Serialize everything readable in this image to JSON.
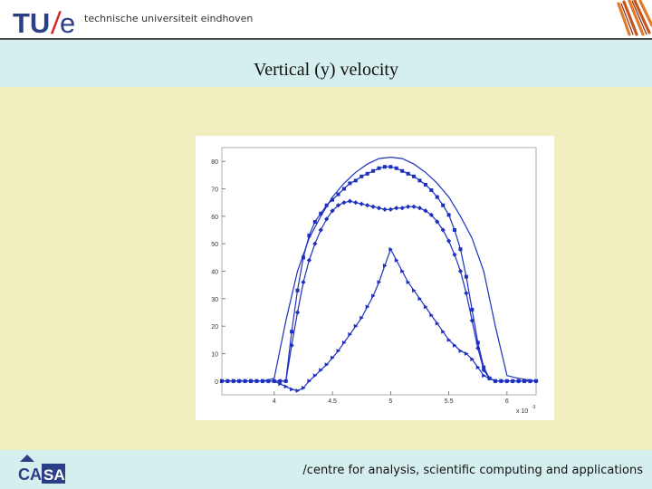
{
  "header": {
    "logo_tu": "TU",
    "logo_slash": "/",
    "logo_e": "e",
    "tagline": "technische universiteit eindhoven"
  },
  "slide": {
    "title": "Vertical (y) velocity"
  },
  "footer": {
    "text": "/centre for analysis, scientific computing and applications",
    "logo_left": "CA",
    "logo_right": "SA"
  },
  "colors": {
    "background": "#f1eebf",
    "band": "#d5eeee",
    "brand_blue": "#2a3f85",
    "brand_red": "#d8272c",
    "series": "#1c2fbe"
  },
  "chart_data": {
    "type": "line",
    "xlim": [
      3.55,
      6.25
    ],
    "ylim": [
      -5,
      85
    ],
    "x_ticks": [
      4,
      4.5,
      5,
      5.5,
      6
    ],
    "x_tick_labels": [
      "4",
      "4.5",
      "5",
      "5.5",
      "6"
    ],
    "y_ticks": [
      0,
      10,
      20,
      30,
      40,
      50,
      60,
      70,
      80
    ],
    "y_tick_labels": [
      "0",
      "10",
      "20",
      "30",
      "40",
      "50",
      "60",
      "70",
      "80"
    ],
    "x_multiplier": "x 10",
    "x_multiplier_exp": "-3",
    "series": [
      {
        "marker": "none",
        "x": [
          3.55,
          3.9,
          4.0,
          4.1,
          4.2,
          4.3,
          4.4,
          4.5,
          4.6,
          4.7,
          4.8,
          4.9,
          5.0,
          5.1,
          5.2,
          5.3,
          5.4,
          5.5,
          5.6,
          5.7,
          5.8,
          5.9,
          6.0,
          6.1,
          6.25
        ],
        "y": [
          0,
          0,
          1,
          22,
          40,
          52,
          60,
          67,
          72,
          76,
          79,
          81,
          81.5,
          81,
          79,
          76,
          72,
          67,
          60,
          52,
          40,
          20,
          2,
          1,
          0
        ]
      },
      {
        "marker": "square",
        "x": [
          3.55,
          3.6,
          3.65,
          3.7,
          3.75,
          3.8,
          3.85,
          3.9,
          3.95,
          4.0,
          4.05,
          4.1,
          4.15,
          4.2,
          4.25,
          4.3,
          4.35,
          4.4,
          4.45,
          4.5,
          4.55,
          4.6,
          4.65,
          4.7,
          4.75,
          4.8,
          4.85,
          4.9,
          4.95,
          5.0,
          5.05,
          5.1,
          5.15,
          5.2,
          5.25,
          5.3,
          5.35,
          5.4,
          5.45,
          5.5,
          5.55,
          5.6,
          5.65,
          5.7,
          5.75,
          5.8,
          5.85,
          5.9,
          5.95,
          6.0,
          6.05,
          6.1,
          6.15,
          6.2,
          6.25
        ],
        "y": [
          0,
          0,
          0,
          0,
          0,
          0,
          0,
          0,
          0,
          0,
          0,
          0,
          18,
          33,
          45,
          53,
          58,
          61,
          64,
          66,
          68,
          70,
          72,
          73,
          74.5,
          75.5,
          76.5,
          77.5,
          78,
          78,
          77.5,
          76.5,
          75.5,
          74.5,
          73,
          71.5,
          69.5,
          67,
          64,
          60.5,
          55,
          48,
          38,
          26,
          14,
          5,
          1,
          0,
          0,
          0,
          0,
          0,
          0,
          0,
          0
        ]
      },
      {
        "marker": "diamond",
        "x": [
          3.55,
          3.6,
          3.65,
          3.7,
          3.75,
          3.8,
          3.85,
          3.9,
          3.95,
          4.0,
          4.05,
          4.1,
          4.15,
          4.2,
          4.25,
          4.3,
          4.35,
          4.4,
          4.45,
          4.5,
          4.55,
          4.6,
          4.65,
          4.7,
          4.75,
          4.8,
          4.85,
          4.9,
          4.95,
          5.0,
          5.05,
          5.1,
          5.15,
          5.2,
          5.25,
          5.3,
          5.35,
          5.4,
          5.45,
          5.5,
          5.55,
          5.6,
          5.65,
          5.7,
          5.75,
          5.8,
          5.85,
          5.9,
          5.95,
          6.0,
          6.05,
          6.1,
          6.15,
          6.2,
          6.25
        ],
        "y": [
          0,
          0,
          0,
          0,
          0,
          0,
          0,
          0,
          0,
          0,
          0,
          0,
          13,
          25,
          36,
          44,
          50,
          55,
          59,
          62,
          64,
          65,
          65.5,
          65,
          64.5,
          64,
          63.5,
          63,
          62.5,
          62.5,
          63,
          63,
          63.5,
          63.5,
          63,
          62,
          60.5,
          58,
          55,
          51,
          46,
          40,
          32,
          22,
          12,
          4,
          1,
          0,
          0,
          0,
          0,
          0,
          0,
          0,
          0
        ]
      },
      {
        "marker": "triangle",
        "x": [
          3.55,
          3.6,
          3.65,
          3.7,
          3.75,
          3.8,
          3.85,
          3.9,
          3.95,
          4.0,
          4.05,
          4.1,
          4.15,
          4.2,
          4.25,
          4.3,
          4.35,
          4.4,
          4.45,
          4.5,
          4.55,
          4.6,
          4.65,
          4.7,
          4.75,
          4.8,
          4.85,
          4.9,
          4.95,
          5.0,
          5.05,
          5.1,
          5.15,
          5.2,
          5.25,
          5.3,
          5.35,
          5.4,
          5.45,
          5.5,
          5.55,
          5.6,
          5.65,
          5.7,
          5.75,
          5.8,
          5.85,
          5.9,
          5.95,
          6.0,
          6.05,
          6.1,
          6.15,
          6.2,
          6.25
        ],
        "y": [
          0,
          0,
          0,
          0,
          0,
          0,
          0,
          0,
          0,
          0,
          -1,
          -2,
          -3,
          -3.5,
          -2.5,
          0,
          2,
          4,
          6,
          8.5,
          11,
          14,
          17,
          20,
          23,
          27,
          31,
          36,
          42,
          48,
          44,
          40,
          36,
          33,
          30,
          27,
          24,
          21,
          18,
          15,
          13,
          11,
          10,
          8,
          5,
          2,
          1,
          0,
          0,
          0,
          0,
          0,
          0,
          0,
          0
        ]
      }
    ]
  }
}
